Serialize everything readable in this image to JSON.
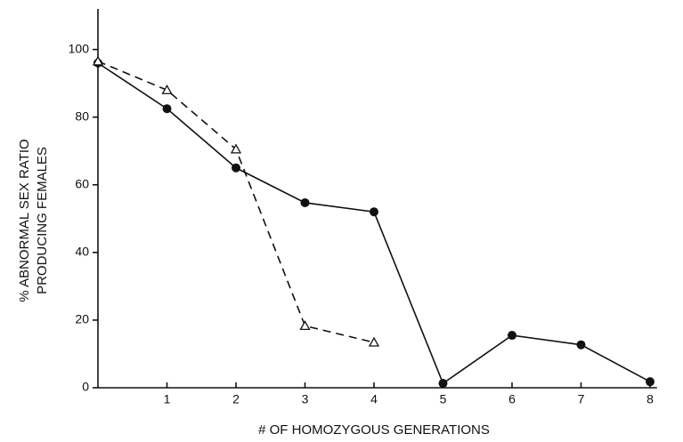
{
  "chart_data": {
    "type": "line",
    "xlabel": "# OF HOMOZYGOUS GENERATIONS",
    "ylabel": [
      "% ABNORMAL SEX RATIO",
      "PRODUCING FEMALES"
    ],
    "x": [
      0,
      1,
      2,
      3,
      4,
      5,
      6,
      7,
      8
    ],
    "series": [
      {
        "color": "#111111",
        "marker": "circle",
        "dashed": false,
        "values": [
          96,
          82.5,
          65,
          54.7,
          52,
          1.3,
          15.5,
          12.7,
          1.8
        ]
      },
      {
        "color": "#111111",
        "marker": "triangle",
        "dashed": true,
        "values": [
          96.5,
          88,
          70.5,
          18.3,
          13.4,
          null,
          null,
          null,
          null
        ]
      }
    ],
    "xlim": [
      0,
      8.1
    ],
    "xticks": [
      1,
      2,
      3,
      4,
      5,
      6,
      7,
      8
    ],
    "ylim": [
      0,
      112
    ],
    "yticks": [
      0,
      20,
      40,
      60,
      80,
      100
    ]
  }
}
